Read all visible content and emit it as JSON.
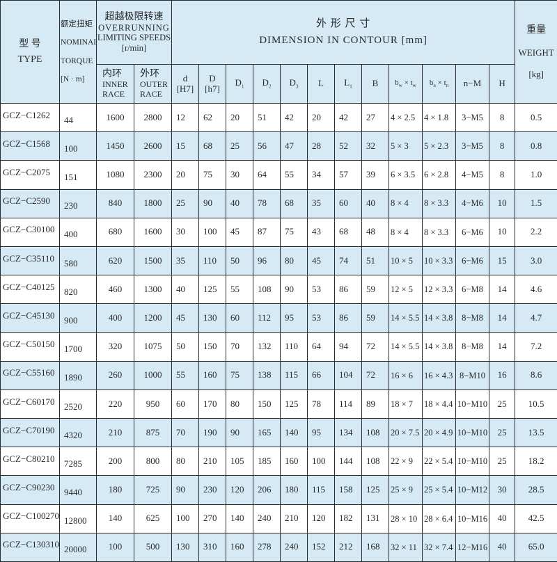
{
  "header": {
    "type_cn": "型 号",
    "type_en": "TYPE",
    "torque_cn": "额定扭矩",
    "torque_en1": "NOMINAL",
    "torque_en2": "TORQUE",
    "torque_unit": "[N · m]",
    "speed_cn": "超越极限转速",
    "speed_en1": "OVERRUNNING",
    "speed_en2": "LIMITING SPEEDS",
    "speed_unit": "[r/min]",
    "inner_cn": "内环",
    "inner_en1": "INNER",
    "inner_en2": "RACE",
    "outer_cn": "外环",
    "outer_en1": "OUTER",
    "outer_en2": "RACE",
    "dim_cn": "外 形 尺 寸",
    "dim_en": "DIMENSION  IN  CONTOUR [mm]",
    "weight_cn": "重量",
    "weight_en": "WEIGHT",
    "weight_unit": "[kg]",
    "dim_columns": [
      {
        "main": "d",
        "sub": "[H7]"
      },
      {
        "main": "D",
        "sub": "[h7]"
      },
      {
        "main": "D",
        "idx": "1"
      },
      {
        "main": "D",
        "idx": "2"
      },
      {
        "main": "D",
        "idx": "3"
      },
      {
        "main": "L"
      },
      {
        "main": "L",
        "idx": "1"
      },
      {
        "main": "B"
      },
      {
        "main": "b",
        "idx": "w",
        "mid": " × t",
        "idx2": "w"
      },
      {
        "main": "b",
        "idx": "n",
        "mid": " × t",
        "idx2": "n"
      },
      {
        "main": "n−M"
      },
      {
        "main": "H"
      }
    ]
  },
  "rows": [
    [
      "GCZ−C1262",
      "44",
      "1600",
      "2800",
      "12",
      "62",
      "20",
      "51",
      "42",
      "20",
      "42",
      "27",
      "4 × 2.5",
      "4 × 1.8",
      "3−M5",
      "8",
      "0.5"
    ],
    [
      "GCZ−C1568",
      "100",
      "1450",
      "2600",
      "15",
      "68",
      "25",
      "56",
      "47",
      "28",
      "52",
      "32",
      "5 × 3",
      "5 × 2.3",
      "3−M5",
      "8",
      "0.8"
    ],
    [
      "GCZ−C2075",
      "151",
      "1080",
      "2300",
      "20",
      "75",
      "30",
      "64",
      "55",
      "34",
      "57",
      "39",
      "6 × 3.5",
      "6 × 2.8",
      "4−M5",
      "8",
      "1.0"
    ],
    [
      "GCZ−C2590",
      "230",
      "840",
      "1800",
      "25",
      "90",
      "40",
      "78",
      "68",
      "35",
      "60",
      "40",
      "8 × 4",
      "8 × 3.3",
      "4−M6",
      "10",
      "1.5"
    ],
    [
      "GCZ−C30100",
      "400",
      "680",
      "1600",
      "30",
      "100",
      "45",
      "87",
      "75",
      "43",
      "68",
      "48",
      "8 × 4",
      "8 × 3.3",
      "6−M6",
      "10",
      "2.2"
    ],
    [
      "GCZ−C35110",
      "580",
      "620",
      "1500",
      "35",
      "110",
      "50",
      "96",
      "80",
      "45",
      "74",
      "51",
      "10 × 5",
      "10 × 3.3",
      "6−M6",
      "15",
      "3.0"
    ],
    [
      "GCZ−C40125",
      "820",
      "460",
      "1300",
      "40",
      "125",
      "55",
      "108",
      "90",
      "53",
      "86",
      "59",
      "12 × 5",
      "12 × 3.3",
      "6−M8",
      "14",
      "4.6"
    ],
    [
      "GCZ−C45130",
      "900",
      "400",
      "1200",
      "45",
      "130",
      "60",
      "112",
      "95",
      "53",
      "86",
      "59",
      "14 × 5.5",
      "14 × 3.8",
      "8−M8",
      "14",
      "4.7"
    ],
    [
      "GCZ−C50150",
      "1700",
      "320",
      "1075",
      "50",
      "150",
      "70",
      "132",
      "110",
      "64",
      "94",
      "72",
      "14 × 5.5",
      "14 × 3.8",
      "8−M8",
      "14",
      "7.2"
    ],
    [
      "GCZ−C55160",
      "1890",
      "260",
      "1000",
      "55",
      "160",
      "75",
      "138",
      "115",
      "66",
      "104",
      "72",
      "16 × 6",
      "16 × 4.3",
      "8−M10",
      "16",
      "8.6"
    ],
    [
      "GCZ−C60170",
      "2520",
      "220",
      "950",
      "60",
      "170",
      "80",
      "150",
      "125",
      "78",
      "114",
      "89",
      "18 × 7",
      "18 × 4.4",
      "10−M10",
      "25",
      "10.5"
    ],
    [
      "GCZ−C70190",
      "4320",
      "210",
      "875",
      "70",
      "190",
      "90",
      "165",
      "140",
      "95",
      "134",
      "108",
      "20 × 7.5",
      "20 × 4.9",
      "10−M10",
      "25",
      "13.5"
    ],
    [
      "GCZ−C80210",
      "7285",
      "200",
      "800",
      "80",
      "210",
      "105",
      "185",
      "160",
      "100",
      "144",
      "108",
      "22 × 9",
      "22 × 5.4",
      "10−M10",
      "25",
      "18.2"
    ],
    [
      "GCZ−C90230",
      "9440",
      "180",
      "725",
      "90",
      "230",
      "120",
      "206",
      "180",
      "115",
      "158",
      "125",
      "25 × 9",
      "25 × 5.4",
      "10−M12",
      "30",
      "28.5"
    ],
    [
      "GCZ−C100270",
      "12800",
      "140",
      "625",
      "100",
      "270",
      "140",
      "240",
      "210",
      "120",
      "182",
      "131",
      "28 × 10",
      "28 × 6.4",
      "10−M16",
      "40",
      "42.5"
    ],
    [
      "GCZ−C130310",
      "20000",
      "100",
      "500",
      "130",
      "310",
      "160",
      "278",
      "240",
      "152",
      "212",
      "168",
      "32 × 11",
      "32 × 7.4",
      "12−M16",
      "40",
      "65.0"
    ]
  ],
  "colors": {
    "header_bg": "#d6eaf6",
    "shade_bg": "#d6eaf6",
    "border": "#2b2b2b"
  }
}
